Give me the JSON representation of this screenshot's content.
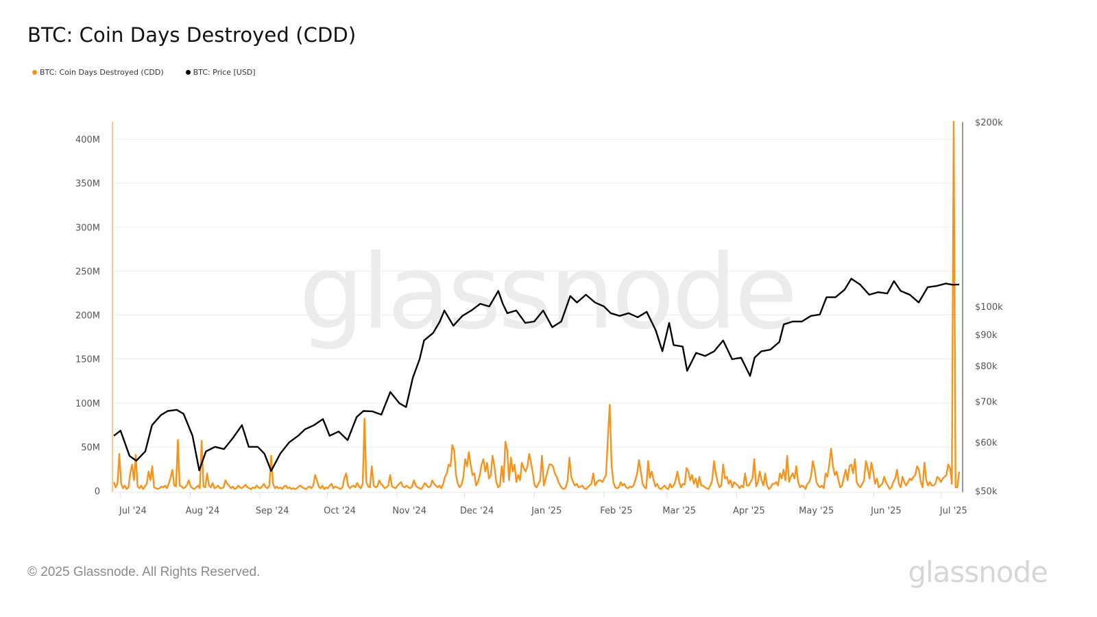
{
  "title": "BTC: Coin Days Destroyed (CDD)",
  "legend": [
    {
      "label": "BTC: Coin Days Destroyed (CDD)",
      "color": "#f7931a"
    },
    {
      "label": "BTC: Price [USD]",
      "color": "#000000"
    }
  ],
  "footer": {
    "copyright": "© 2025 Glassnode. All Rights Reserved.",
    "logo": "glassnode"
  },
  "watermark": "glassnode",
  "colors": {
    "cdd": "#f7931a",
    "price": "#000000",
    "grid": "#efefef",
    "axis_text": "#555555"
  },
  "chart_data": {
    "type": "line",
    "title": "BTC: Coin Days Destroyed (CDD)",
    "xlabel": "",
    "ylabel": "",
    "y_left": {
      "label": "CDD",
      "ticks": [
        "0",
        "50M",
        "100M",
        "150M",
        "200M",
        "250M",
        "300M",
        "350M",
        "400M"
      ],
      "values": [
        0,
        50,
        100,
        150,
        200,
        250,
        300,
        350,
        400
      ],
      "unit": "M",
      "range": [
        0,
        420
      ]
    },
    "y_right": {
      "label": "Price [USD]",
      "scale": "log",
      "ticks": [
        "$50k",
        "$60k",
        "$70k",
        "$80k",
        "$90k",
        "$100k",
        "$200k"
      ],
      "values": [
        50,
        60,
        70,
        80,
        90,
        100,
        200
      ],
      "range": [
        50,
        200
      ]
    },
    "x_ticks": [
      "Jul '24",
      "Aug '24",
      "Sep '24",
      "Oct '24",
      "Nov '24",
      "Dec '24",
      "Jan '25",
      "Feb '25",
      "Mar '25",
      "Apr '25",
      "May '25",
      "Jun '25",
      "Jul '25"
    ],
    "grid": true,
    "legend_position": "top-left",
    "series": [
      {
        "name": "BTC: Price [USD]",
        "axis": "right",
        "unit": "k USD",
        "x": [
          "2024-06-28",
          "2024-07-01",
          "2024-07-05",
          "2024-07-08",
          "2024-07-12",
          "2024-07-15",
          "2024-07-19",
          "2024-07-22",
          "2024-07-26",
          "2024-07-29",
          "2024-08-02",
          "2024-08-05",
          "2024-08-08",
          "2024-08-12",
          "2024-08-16",
          "2024-08-20",
          "2024-08-24",
          "2024-08-27",
          "2024-08-31",
          "2024-09-03",
          "2024-09-06",
          "2024-09-10",
          "2024-09-14",
          "2024-09-18",
          "2024-09-21",
          "2024-09-25",
          "2024-09-29",
          "2024-10-02",
          "2024-10-06",
          "2024-10-10",
          "2024-10-14",
          "2024-10-17",
          "2024-10-21",
          "2024-10-25",
          "2024-10-29",
          "2024-11-02",
          "2024-11-05",
          "2024-11-08",
          "2024-11-11",
          "2024-11-13",
          "2024-11-17",
          "2024-11-20",
          "2024-11-22",
          "2024-11-26",
          "2024-11-30",
          "2024-12-04",
          "2024-12-08",
          "2024-12-12",
          "2024-12-16",
          "2024-12-18",
          "2024-12-20",
          "2024-12-24",
          "2024-12-28",
          "2025-01-01",
          "2025-01-05",
          "2025-01-09",
          "2025-01-13",
          "2025-01-17",
          "2025-01-20",
          "2025-01-24",
          "2025-01-28",
          "2025-02-01",
          "2025-02-04",
          "2025-02-08",
          "2025-02-12",
          "2025-02-16",
          "2025-02-20",
          "2025-02-24",
          "2025-02-27",
          "2025-03-02",
          "2025-03-04",
          "2025-03-08",
          "2025-03-10",
          "2025-03-14",
          "2025-03-18",
          "2025-03-22",
          "2025-03-26",
          "2025-03-30",
          "2025-04-03",
          "2025-04-07",
          "2025-04-09",
          "2025-04-12",
          "2025-04-16",
          "2025-04-20",
          "2025-04-22",
          "2025-04-26",
          "2025-04-30",
          "2025-05-04",
          "2025-05-08",
          "2025-05-11",
          "2025-05-15",
          "2025-05-19",
          "2025-05-22",
          "2025-05-26",
          "2025-05-30",
          "2025-06-03",
          "2025-06-07",
          "2025-06-10",
          "2025-06-13",
          "2025-06-17",
          "2025-06-21",
          "2025-06-25",
          "2025-06-29",
          "2025-07-03",
          "2025-07-06",
          "2025-07-09"
        ],
        "values": [
          61.5,
          62.7,
          57.0,
          56.0,
          58.0,
          64.0,
          66.5,
          67.5,
          67.8,
          66.8,
          61.5,
          54.0,
          58.0,
          59.0,
          58.5,
          61.0,
          64.0,
          59.0,
          59.0,
          57.5,
          53.9,
          57.5,
          60.0,
          61.5,
          63.0,
          64.0,
          65.5,
          61.5,
          62.5,
          60.5,
          66.0,
          67.5,
          67.4,
          66.6,
          72.5,
          69.5,
          68.5,
          76.5,
          82.0,
          88.0,
          90.5,
          94.5,
          98.5,
          93.0,
          96.5,
          98.5,
          101.0,
          100.0,
          106.0,
          101.0,
          97.5,
          98.5,
          94.0,
          94.5,
          98.5,
          92.5,
          94.5,
          104.0,
          101.5,
          104.5,
          101.5,
          100.0,
          97.5,
          96.5,
          97.5,
          96.0,
          98.0,
          91.5,
          84.5,
          94.0,
          86.5,
          86.0,
          78.5,
          84.0,
          83.0,
          84.5,
          88.0,
          82.0,
          82.5,
          77.0,
          82.5,
          84.5,
          85.0,
          87.5,
          93.5,
          94.5,
          94.5,
          96.5,
          97.0,
          103.5,
          103.5,
          106.5,
          111.0,
          108.5,
          104.5,
          105.5,
          105.0,
          110.0,
          106.0,
          104.5,
          101.5,
          107.5,
          108.0,
          109.0,
          108.5,
          108.6
        ]
      },
      {
        "name": "BTC: Coin Days Destroyed (CDD)",
        "axis": "left",
        "unit": "M",
        "x_start": "2024-06-28",
        "x_end": "2025-07-09",
        "note": "daily values, millions of coin-days; major spikes: ~58M (2024-07-31), ~57M (2024-08-06), ~82M (2024-10-02), ~98M (2025-01-22), ~48M (2025-05-04), ~420M (2025-07-04)",
        "values": [
          10,
          4,
          8,
          42,
          8,
          3,
          6,
          2,
          4,
          20,
          30,
          12,
          41,
          5,
          3,
          6,
          2,
          5,
          8,
          22,
          12,
          28,
          4,
          3,
          2,
          3,
          5,
          4,
          6,
          3,
          8,
          15,
          24,
          6,
          5,
          58,
          6,
          5,
          3,
          4,
          7,
          12,
          5,
          3,
          2,
          4,
          6,
          3,
          57,
          5,
          4,
          20,
          6,
          4,
          9,
          3,
          4,
          6,
          3,
          3,
          4,
          12,
          8,
          6,
          3,
          5,
          2,
          3,
          6,
          4,
          3,
          5,
          7,
          4,
          3,
          2,
          4,
          3,
          6,
          4,
          3,
          5,
          8,
          4,
          3,
          6,
          40,
          8,
          3,
          5,
          3,
          4,
          2,
          5,
          6,
          3,
          4,
          2,
          3,
          2,
          3,
          5,
          6,
          4,
          3,
          2,
          4,
          5,
          3,
          6,
          18,
          12,
          5,
          3,
          6,
          2,
          4,
          3,
          6,
          8,
          3,
          5,
          4,
          3,
          2,
          4,
          15,
          20,
          6,
          3,
          5,
          6,
          4,
          9,
          5,
          3,
          8,
          82,
          10,
          5,
          4,
          28,
          6,
          4,
          5,
          12,
          8,
          6,
          3,
          4,
          6,
          18,
          5,
          4,
          3,
          6,
          8,
          10,
          5,
          4,
          6,
          4,
          3,
          5,
          12,
          6,
          4,
          3,
          2,
          5,
          9,
          6,
          4,
          5,
          12,
          8,
          6,
          4,
          6,
          3,
          8,
          16,
          20,
          30,
          28,
          52,
          46,
          18,
          8,
          4,
          7,
          15,
          36,
          28,
          44,
          30,
          18,
          20,
          6,
          10,
          18,
          30,
          36,
          22,
          32,
          14,
          18,
          40,
          28,
          10,
          4,
          6,
          28,
          10,
          56,
          46,
          12,
          38,
          22,
          30,
          10,
          18,
          12,
          32,
          26,
          22,
          28,
          42,
          32,
          20,
          6,
          4,
          8,
          12,
          40,
          6,
          14,
          22,
          30,
          30,
          28,
          20,
          16,
          10,
          6,
          3,
          2,
          4,
          12,
          38,
          16,
          10,
          6,
          8,
          4,
          5,
          6,
          3,
          2,
          4,
          6,
          8,
          20,
          6,
          10,
          12,
          12,
          10,
          14,
          18,
          60,
          98,
          30,
          10,
          4,
          3,
          4,
          10,
          6,
          8,
          4,
          3,
          5,
          4,
          6,
          12,
          20,
          35,
          22,
          8,
          4,
          3,
          34,
          15,
          22,
          12,
          5,
          8,
          3,
          2,
          4,
          6,
          3,
          2,
          8,
          4,
          6,
          12,
          22,
          10,
          4,
          8,
          7,
          26,
          22,
          12,
          18,
          8,
          14,
          4,
          16,
          6,
          6,
          4,
          3,
          2,
          6,
          12,
          34,
          20,
          10,
          4,
          6,
          30,
          14,
          16,
          8,
          12,
          4,
          10,
          8,
          6,
          3,
          6,
          4,
          20,
          6,
          6,
          10,
          14,
          36,
          5,
          10,
          22,
          12,
          6,
          20,
          6,
          2,
          4,
          8,
          8,
          10,
          6,
          20,
          14,
          24,
          12,
          40,
          10,
          16,
          20,
          14,
          28,
          10,
          4,
          6,
          5,
          2,
          8,
          10,
          16,
          34,
          24,
          10,
          6,
          4,
          6,
          3,
          20,
          16,
          30,
          48,
          28,
          18,
          22,
          12,
          4,
          6,
          16,
          24,
          12,
          28,
          30,
          20,
          36,
          10,
          6,
          4,
          8,
          12,
          34,
          26,
          14,
          32,
          22,
          8,
          14,
          4,
          6,
          8,
          16,
          10,
          6,
          2,
          4,
          10,
          14,
          24,
          8,
          4,
          16,
          10,
          6,
          10,
          14,
          12,
          16,
          18,
          28,
          24,
          10,
          4,
          32,
          12,
          6,
          10,
          6,
          6,
          8,
          16,
          14,
          10,
          14,
          16,
          18,
          30,
          26,
          8,
          420,
          4,
          4,
          22
        ]
      }
    ]
  }
}
